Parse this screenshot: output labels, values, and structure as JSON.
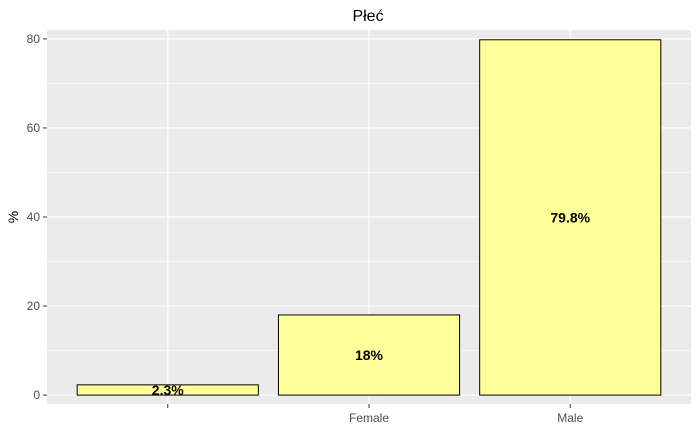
{
  "chart_data": {
    "type": "bar",
    "title": "Płeć",
    "xlabel": "",
    "ylabel": "%",
    "categories": [
      "",
      "Female",
      "Male"
    ],
    "values": [
      2.3,
      18,
      79.8
    ],
    "data_labels": [
      "2.3%",
      "18%",
      "79.8%"
    ],
    "ylim": [
      -2,
      82
    ],
    "yticks": [
      0,
      20,
      40,
      60,
      80
    ],
    "grid": true,
    "legend": "none",
    "colors": {
      "panel": "#ebebeb",
      "grid": "#ffffff",
      "bar_fill": "#ffff99",
      "bar_stroke": "#000000"
    }
  }
}
